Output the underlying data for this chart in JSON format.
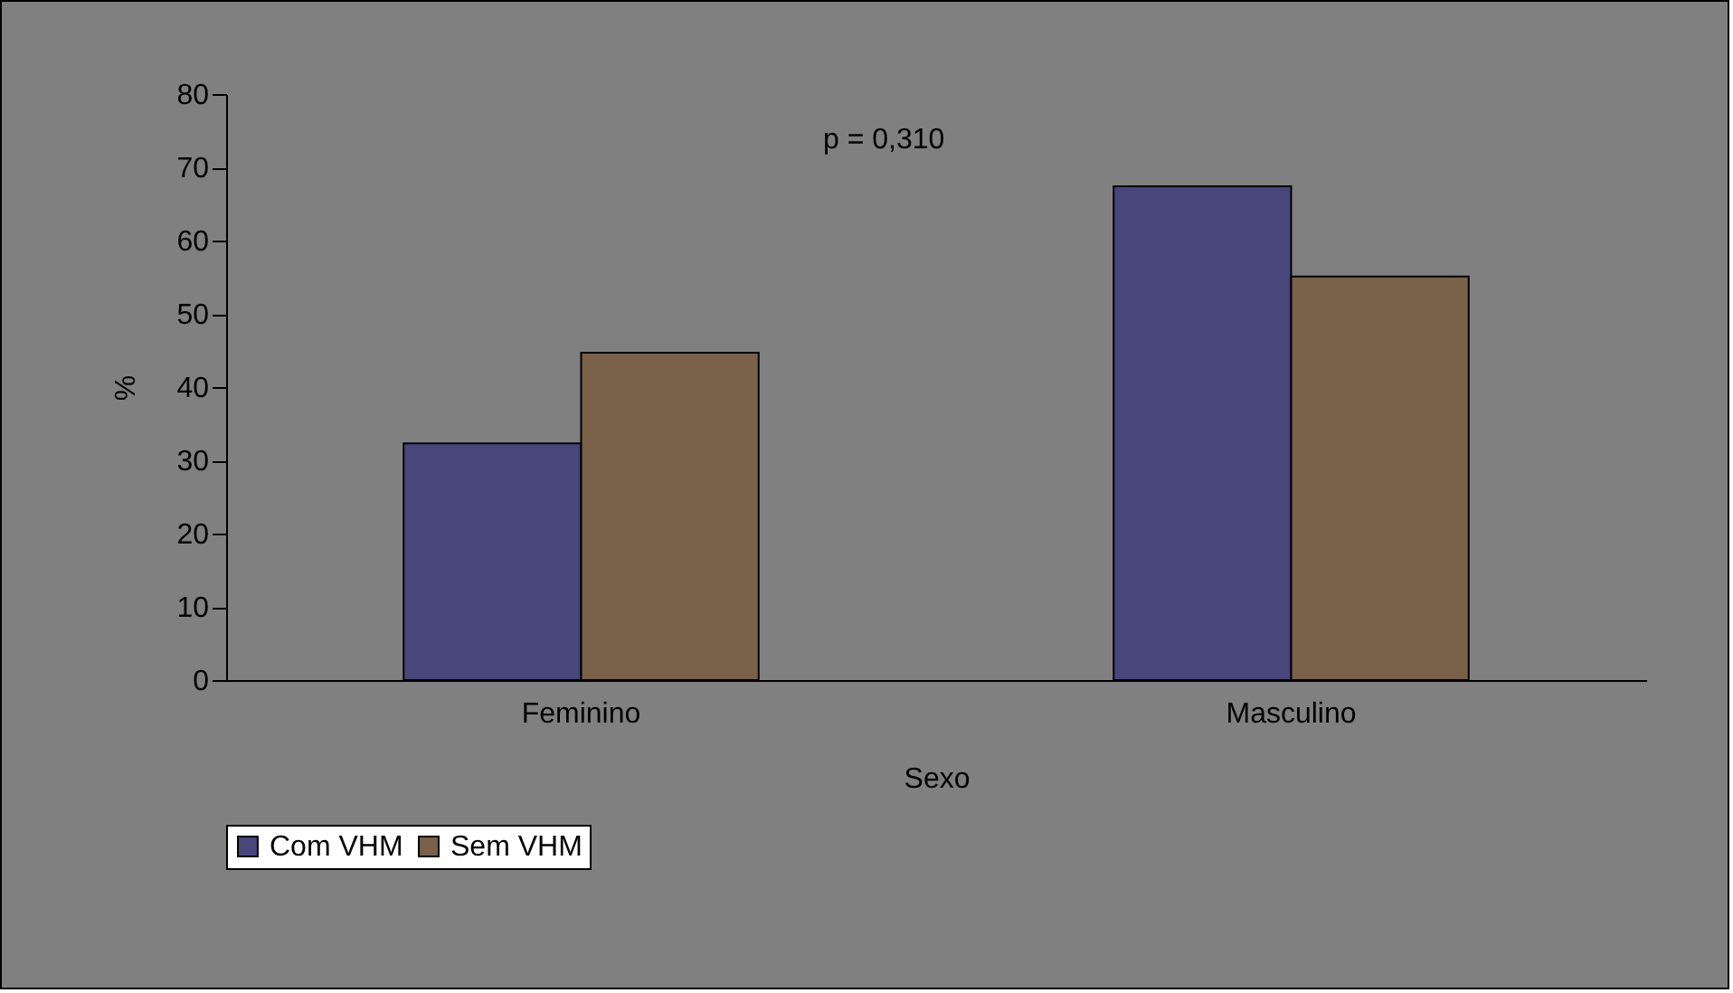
{
  "chart_data": {
    "type": "bar",
    "xlabel": "Sexo",
    "ylabel": "%",
    "categories": [
      "Feminino",
      "Masculino"
    ],
    "series": [
      {
        "name": "Com VHM",
        "color": "#48467a",
        "values": [
          32.3,
          67.4
        ]
      },
      {
        "name": "Sem VHM",
        "color": "#7a6149",
        "values": [
          44.7,
          55.1
        ]
      }
    ],
    "ylim": [
      0,
      80
    ],
    "yticks": [
      0,
      10,
      20,
      30,
      40,
      50,
      60,
      70,
      80
    ],
    "grid": false,
    "legend": "bottom",
    "annotations": [
      "p = 0,310"
    ]
  }
}
